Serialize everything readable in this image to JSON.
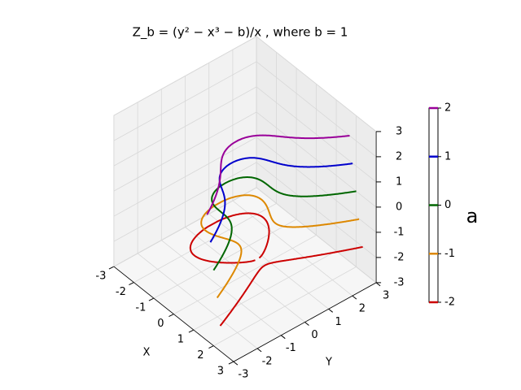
{
  "chart_data": {
    "type": "contour3d",
    "title": "Z_b = (y² − x³ − b)/x , where b = 1",
    "b": 1,
    "xlabel": "X",
    "ylabel": "Y",
    "xlim": [
      -3,
      3
    ],
    "ylim": [
      -3,
      3
    ],
    "zlim": [
      -3,
      3
    ],
    "xticks": [
      -3,
      -2,
      -1,
      0,
      1,
      2,
      3
    ],
    "yticks": [
      -3,
      -2,
      -1,
      0,
      1,
      2,
      3
    ],
    "zticks": [
      -3,
      -2,
      -1,
      0,
      1,
      2,
      3
    ],
    "colorbar": {
      "label": "a",
      "ticks": [
        -2,
        -1,
        0,
        1,
        2
      ],
      "colors": [
        "#cc0000",
        "#dd8800",
        "#006600",
        "#0000cc",
        "#990099"
      ]
    }
  }
}
